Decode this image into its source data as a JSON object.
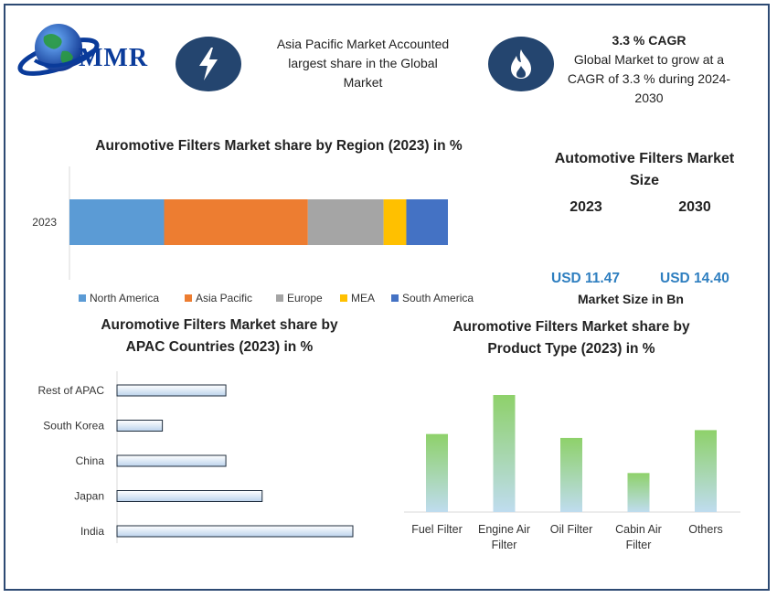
{
  "logo": {
    "text": "MMR"
  },
  "header": {
    "info1": {
      "icon": "lightning-icon",
      "lines": [
        "Asia Pacific Market Accounted",
        "largest share in the Global",
        "Market"
      ]
    },
    "info2": {
      "icon": "flame-icon",
      "title": "3.3 % CAGR",
      "lines": [
        "Global Market to grow at a",
        "CAGR of 3.3 % during 2024-",
        "2030"
      ]
    }
  },
  "market_size": {
    "title_lines": [
      "Automotive Filters Market",
      "Size"
    ],
    "years": [
      "2023",
      "2030"
    ],
    "values": [
      "USD 11.47",
      "USD 14.40"
    ],
    "caption": "Market Size in Bn"
  },
  "colors": {
    "north_america": "#5b9bd5",
    "asia_pacific": "#ed7d31",
    "europe": "#a5a5a5",
    "mea": "#ffc000",
    "south_america": "#4472c4",
    "brand": "#24456f",
    "usd": "#2f7fc0"
  },
  "chart_data": [
    {
      "type": "bar",
      "orientation": "horizontal-stacked",
      "title": "Auromotive Filters Market share by Region (2023) in %",
      "categories": [
        "2023"
      ],
      "series": [
        {
          "name": "North America",
          "values": [
            25
          ]
        },
        {
          "name": "Asia Pacific",
          "values": [
            38
          ]
        },
        {
          "name": "Europe",
          "values": [
            20
          ]
        },
        {
          "name": "MEA",
          "values": [
            6
          ]
        },
        {
          "name": "South America",
          "values": [
            11
          ]
        }
      ],
      "legend": "bottom"
    },
    {
      "type": "bar",
      "orientation": "horizontal",
      "title_lines": [
        "Auromotive Filters Market share by",
        "APAC Countries (2023) in %"
      ],
      "categories": [
        "Rest of APAC",
        "South Korea",
        "China",
        "Japan",
        "India"
      ],
      "values": [
        12,
        5,
        12,
        16,
        26
      ]
    },
    {
      "type": "bar",
      "title_lines": [
        "Auromotive Filters Market share by",
        "Product Type (2023) in %"
      ],
      "categories": [
        [
          "Fuel Filter"
        ],
        [
          "Engine Air",
          "Filter"
        ],
        [
          "Oil Filter"
        ],
        [
          "Cabin Air",
          "Filter"
        ],
        [
          "Others"
        ]
      ],
      "values": [
        20,
        30,
        19,
        10,
        21
      ]
    }
  ]
}
